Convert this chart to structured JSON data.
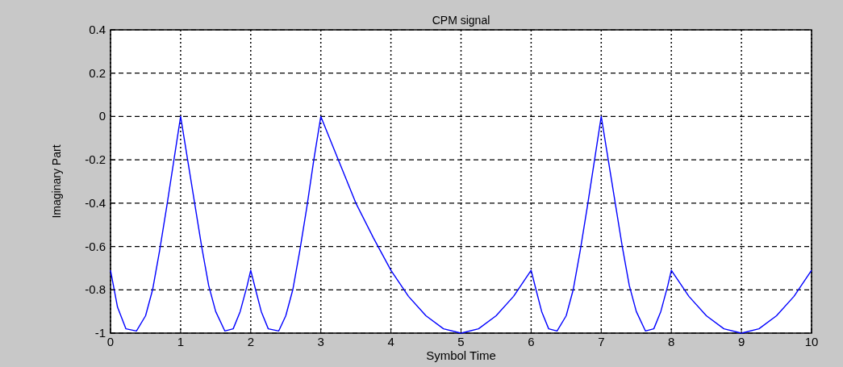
{
  "chart_data": {
    "type": "line",
    "title": "CPM signal",
    "xlabel": "Symbol Time",
    "ylabel": "Imaginary Part",
    "xlim": [
      0,
      10
    ],
    "xticks": [
      0,
      1,
      2,
      3,
      4,
      5,
      6,
      7,
      8,
      9,
      10
    ],
    "ylim": [
      -1,
      0.4
    ],
    "yticks": [
      -1,
      -0.8,
      -0.6,
      -0.4,
      -0.2,
      0,
      0.2,
      0.4
    ],
    "grid": true,
    "series": [
      {
        "color": "#0000ff",
        "x": [
          0,
          0.1,
          0.22,
          0.37,
          0.5,
          0.6,
          0.7,
          0.8,
          0.9,
          1,
          1.1,
          1.2,
          1.3,
          1.4,
          1.5,
          1.63,
          1.75,
          1.85,
          1.95,
          2,
          2.07,
          2.15,
          2.25,
          2.4,
          2.5,
          2.6,
          2.7,
          2.8,
          2.9,
          3,
          3.25,
          3.5,
          3.75,
          4,
          4.25,
          4.5,
          4.75,
          5,
          5.25,
          5.5,
          5.75,
          6,
          6.07,
          6.15,
          6.25,
          6.37,
          6.5,
          6.6,
          6.7,
          6.8,
          6.9,
          7,
          7.1,
          7.2,
          7.3,
          7.4,
          7.5,
          7.63,
          7.75,
          7.85,
          7.95,
          8,
          8.25,
          8.5,
          8.75,
          9,
          9.25,
          9.5,
          9.75,
          10
        ],
        "values": [
          -0.71,
          -0.88,
          -0.98,
          -0.99,
          -0.92,
          -0.8,
          -0.62,
          -0.42,
          -0.21,
          0,
          -0.2,
          -0.4,
          -0.6,
          -0.78,
          -0.9,
          -0.99,
          -0.98,
          -0.9,
          -0.78,
          -0.71,
          -0.8,
          -0.9,
          -0.98,
          -0.99,
          -0.92,
          -0.8,
          -0.62,
          -0.42,
          -0.2,
          0,
          -0.2,
          -0.4,
          -0.56,
          -0.71,
          -0.83,
          -0.92,
          -0.98,
          -1,
          -0.98,
          -0.92,
          -0.83,
          -0.71,
          -0.8,
          -0.9,
          -0.98,
          -0.99,
          -0.92,
          -0.8,
          -0.62,
          -0.42,
          -0.21,
          0,
          -0.2,
          -0.4,
          -0.6,
          -0.78,
          -0.9,
          -0.99,
          -0.98,
          -0.9,
          -0.78,
          -0.71,
          -0.83,
          -0.92,
          -0.98,
          -1,
          -0.98,
          -0.92,
          -0.83,
          -0.71
        ]
      }
    ]
  }
}
